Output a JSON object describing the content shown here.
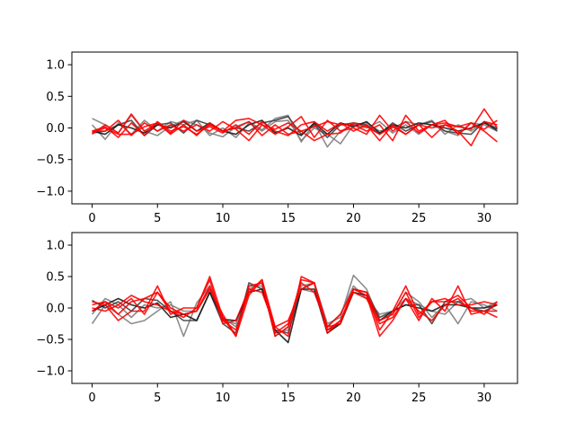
{
  "chart_data": [
    {
      "type": "line",
      "title": "",
      "xlabel": "",
      "ylabel": "",
      "xlim": [
        -1.55,
        32.55
      ],
      "ylim": [
        -1.2,
        1.2
      ],
      "xticks": [
        0,
        5,
        10,
        15,
        20,
        25,
        30
      ],
      "yticks": [
        -1.0,
        -0.5,
        0.0,
        0.5,
        1.0
      ],
      "xtick_labels": [
        "0",
        "5",
        "10",
        "15",
        "20",
        "25",
        "30"
      ],
      "ytick_labels": [
        "−1.0",
        "−0.5",
        "0.0",
        "0.5",
        "1.0"
      ],
      "grid": false,
      "legend": "none",
      "x": [
        0,
        1,
        2,
        3,
        4,
        5,
        6,
        7,
        8,
        9,
        10,
        11,
        12,
        13,
        14,
        15,
        16,
        17,
        18,
        19,
        20,
        21,
        22,
        23,
        24,
        25,
        26,
        27,
        28,
        29,
        30,
        31
      ],
      "series": [
        {
          "color": "#808080",
          "values": [
            0.15,
            0.05,
            -0.08,
            0.2,
            -0.05,
            -0.12,
            0.03,
            0.12,
            0.05,
            -0.08,
            -0.14,
            0.02,
            0.1,
            -0.03,
            0.15,
            0.2,
            -0.22,
            0.08,
            -0.3,
            -0.05,
            0.05,
            0.08,
            -0.05,
            0.0,
            0.1,
            0.05,
            0.12,
            -0.1,
            0.05,
            -0.05,
            0.1,
            0.0
          ]
        },
        {
          "color": "#808080",
          "values": [
            0.05,
            -0.18,
            0.08,
            -0.1,
            0.12,
            -0.05,
            0.1,
            0.05,
            0.12,
            -0.12,
            0.0,
            -0.15,
            0.08,
            -0.05,
            0.1,
            0.12,
            -0.2,
            0.0,
            -0.1,
            -0.25,
            0.05,
            0.0,
            0.1,
            -0.08,
            0.05,
            -0.1,
            0.05,
            -0.05,
            -0.12,
            0.08,
            0.05,
            -0.05
          ]
        },
        {
          "color": "#404040",
          "values": [
            -0.08,
            -0.05,
            0.05,
            0.12,
            -0.12,
            0.05,
            0.08,
            -0.08,
            0.12,
            0.05,
            -0.05,
            0.0,
            -0.05,
            0.08,
            0.12,
            0.18,
            -0.1,
            0.05,
            -0.15,
            0.05,
            0.08,
            0.05,
            -0.1,
            0.08,
            -0.05,
            0.05,
            0.1,
            -0.05,
            -0.08,
            -0.1,
            0.1,
            -0.05
          ]
        },
        {
          "color": "#1a1a1a",
          "values": [
            -0.05,
            -0.1,
            0.05,
            0.0,
            -0.08,
            0.05,
            0.0,
            0.1,
            -0.05,
            0.08,
            -0.05,
            -0.1,
            0.05,
            0.12,
            -0.08,
            0.0,
            -0.12,
            0.08,
            -0.1,
            0.08,
            0.02,
            0.1,
            -0.08,
            0.05,
            0.0,
            0.08,
            0.05,
            0.0,
            -0.05,
            0.0,
            0.08,
            -0.02
          ]
        },
        {
          "color": "#ff0000",
          "values": [
            -0.05,
            0.02,
            -0.15,
            0.08,
            -0.12,
            0.1,
            -0.05,
            0.02,
            -0.1,
            0.05,
            -0.05,
            0.12,
            0.15,
            0.05,
            -0.1,
            0.02,
            0.18,
            -0.15,
            0.12,
            -0.05,
            0.0,
            -0.1,
            0.2,
            -0.05,
            0.1,
            -0.08,
            0.05,
            0.12,
            -0.1,
            0.08,
            -0.05,
            -0.22
          ]
        },
        {
          "color": "#ff0000",
          "values": [
            -0.1,
            0.05,
            -0.08,
            0.22,
            -0.05,
            0.08,
            -0.08,
            0.12,
            -0.05,
            0.02,
            -0.08,
            0.05,
            -0.1,
            0.1,
            -0.05,
            -0.12,
            0.05,
            0.1,
            -0.05,
            0.08,
            -0.05,
            0.05,
            -0.2,
            0.05,
            -0.1,
            0.05,
            -0.15,
            0.05,
            -0.05,
            -0.28,
            0.1,
            0.05
          ]
        },
        {
          "color": "#ff0000",
          "values": [
            -0.05,
            -0.05,
            0.12,
            -0.12,
            0.08,
            -0.05,
            0.05,
            -0.05,
            0.05,
            -0.05,
            0.1,
            -0.02,
            -0.2,
            0.05,
            -0.02,
            0.08,
            -0.05,
            0.02,
            0.1,
            0.05,
            0.05,
            -0.05,
            0.05,
            -0.2,
            0.2,
            -0.05,
            0.05,
            0.08,
            0.02,
            -0.02,
            0.3,
            0.0
          ]
        },
        {
          "color": "#ff0000",
          "values": [
            -0.08,
            0.0,
            -0.1,
            -0.1,
            0.02,
            0.08,
            -0.1,
            0.05,
            -0.12,
            0.08,
            -0.05,
            0.0,
            0.1,
            -0.12,
            0.05,
            -0.1,
            -0.05,
            -0.2,
            -0.1,
            -0.08,
            0.08,
            0.02,
            -0.1,
            0.02,
            -0.1,
            0.05,
            0.0,
            0.05,
            0.02,
            0.08,
            -0.02,
            0.12
          ]
        }
      ]
    },
    {
      "type": "line",
      "title": "",
      "xlabel": "",
      "ylabel": "",
      "xlim": [
        -1.55,
        32.55
      ],
      "ylim": [
        -1.2,
        1.2
      ],
      "xticks": [
        0,
        5,
        10,
        15,
        20,
        25,
        30
      ],
      "yticks": [
        -1.0,
        -0.5,
        0.0,
        0.5,
        1.0
      ],
      "xtick_labels": [
        "0",
        "5",
        "10",
        "15",
        "20",
        "25",
        "30"
      ],
      "ytick_labels": [
        "−1.0",
        "−0.5",
        "0.0",
        "0.5",
        "1.0"
      ],
      "grid": false,
      "legend": "none",
      "x": [
        0,
        1,
        2,
        3,
        4,
        5,
        6,
        7,
        8,
        9,
        10,
        11,
        12,
        13,
        14,
        15,
        16,
        17,
        18,
        19,
        20,
        21,
        22,
        23,
        24,
        25,
        26,
        27,
        28,
        29,
        30,
        31
      ],
      "series": [
        {
          "color": "#808080",
          "values": [
            -0.25,
            0.05,
            -0.1,
            -0.25,
            -0.2,
            -0.05,
            0.1,
            -0.45,
            0.08,
            0.35,
            -0.2,
            -0.25,
            0.3,
            0.4,
            -0.45,
            -0.3,
            0.35,
            0.4,
            -0.25,
            -0.15,
            0.52,
            0.3,
            -0.2,
            -0.1,
            0.25,
            0.1,
            -0.15,
            0.05,
            -0.25,
            0.1,
            0.05,
            -0.05
          ]
        },
        {
          "color": "#808080",
          "values": [
            -0.1,
            0.15,
            0.05,
            -0.15,
            0.05,
            0.0,
            0.05,
            -0.05,
            -0.05,
            0.3,
            -0.15,
            -0.3,
            0.35,
            0.35,
            -0.4,
            -0.35,
            0.3,
            0.25,
            -0.3,
            -0.1,
            0.35,
            0.15,
            -0.1,
            -0.05,
            0.15,
            0.05,
            -0.05,
            -0.1,
            0.1,
            0.15,
            0.0,
            0.1
          ]
        },
        {
          "color": "#404040",
          "values": [
            0.12,
            0.0,
            0.1,
            -0.05,
            0.15,
            0.12,
            -0.05,
            -0.2,
            -0.2,
            0.25,
            -0.25,
            -0.4,
            0.4,
            0.3,
            -0.35,
            -0.4,
            0.3,
            0.4,
            -0.35,
            -0.25,
            0.3,
            0.25,
            -0.15,
            -0.05,
            0.05,
            0.05,
            -0.25,
            0.1,
            0.1,
            0.0,
            -0.05,
            0.05
          ]
        },
        {
          "color": "#1a1a1a",
          "values": [
            -0.05,
            0.05,
            0.15,
            0.05,
            0.0,
            0.08,
            -0.15,
            -0.1,
            -0.2,
            0.25,
            -0.18,
            -0.2,
            0.25,
            0.3,
            -0.35,
            -0.55,
            0.3,
            0.3,
            -0.4,
            -0.25,
            0.25,
            0.2,
            -0.2,
            -0.05,
            0.05,
            0.0,
            -0.05,
            0.05,
            0.05,
            0.0,
            0.0,
            0.05
          ]
        },
        {
          "color": "#ff0000",
          "values": [
            0.1,
            0.05,
            -0.2,
            -0.05,
            -0.05,
            0.35,
            -0.1,
            0.0,
            0.0,
            0.5,
            -0.15,
            -0.45,
            0.2,
            0.45,
            -0.3,
            -0.45,
            0.5,
            0.4,
            -0.4,
            -0.2,
            0.3,
            0.2,
            -0.45,
            -0.2,
            0.15,
            -0.2,
            0.15,
            -0.05,
            0.35,
            -0.1,
            -0.05,
            -0.15
          ]
        },
        {
          "color": "#ff0000",
          "values": [
            -0.05,
            0.1,
            0.0,
            0.15,
            -0.1,
            0.25,
            -0.05,
            -0.1,
            -0.05,
            0.35,
            -0.2,
            -0.35,
            0.25,
            0.45,
            -0.4,
            -0.25,
            0.4,
            0.25,
            -0.3,
            -0.1,
            0.3,
            0.25,
            -0.35,
            -0.05,
            0.35,
            -0.1,
            0.1,
            0.15,
            0.05,
            0.05,
            0.1,
            0.05
          ]
        },
        {
          "color": "#ff0000",
          "values": [
            0.0,
            -0.05,
            0.05,
            0.2,
            0.1,
            0.05,
            -0.05,
            -0.15,
            0.0,
            0.45,
            -0.25,
            -0.2,
            0.3,
            0.25,
            -0.3,
            -0.2,
            0.3,
            0.4,
            -0.3,
            -0.25,
            0.3,
            0.25,
            -0.2,
            -0.1,
            0.25,
            -0.15,
            0.1,
            0.1,
            0.2,
            0.0,
            -0.1,
            0.1
          ]
        },
        {
          "color": "#ff0000",
          "values": [
            0.05,
            0.1,
            -0.1,
            0.1,
            0.15,
            0.25,
            0.0,
            -0.1,
            -0.05,
            0.3,
            -0.1,
            -0.45,
            0.35,
            0.4,
            -0.45,
            -0.3,
            0.45,
            0.4,
            -0.35,
            -0.2,
            0.25,
            0.15,
            -0.25,
            -0.15,
            0.15,
            -0.05,
            -0.2,
            0.05,
            0.15,
            -0.05,
            -0.05,
            -0.05
          ]
        }
      ]
    }
  ]
}
